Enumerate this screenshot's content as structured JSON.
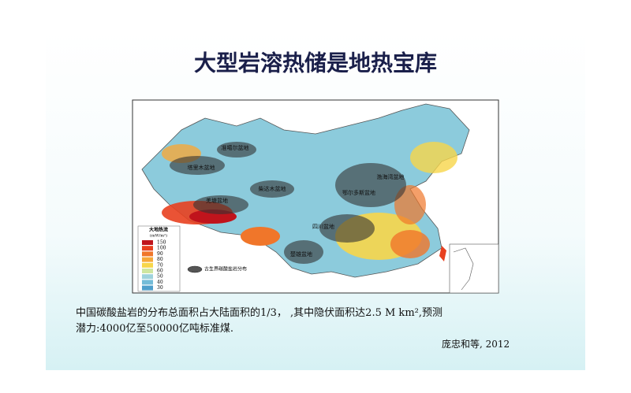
{
  "title": "大型岩溶热储是地热宝库",
  "map": {
    "basins": [
      "准噶尔盆地",
      "塔里木盆地",
      "柴达木盆地",
      "羌塘盆地",
      "鄂尔多斯盆地",
      "渤海湾盆地",
      "四川盆地",
      "楚雄盆地"
    ],
    "legend": {
      "title": "大地热流",
      "unit": "(mW/m²)",
      "items": [
        {
          "value": 150,
          "color": "#c0141c"
        },
        {
          "value": 100,
          "color": "#e8401f"
        },
        {
          "value": 90,
          "color": "#f0762a"
        },
        {
          "value": 80,
          "color": "#f6a83a"
        },
        {
          "value": 70,
          "color": "#f7d64a"
        },
        {
          "value": 60,
          "color": "#cfe6a0"
        },
        {
          "value": 50,
          "color": "#9fd3dc"
        },
        {
          "value": 40,
          "color": "#74bcd8"
        },
        {
          "value": 30,
          "color": "#4f9fcb"
        }
      ]
    },
    "carbonate_label": "古生界碳酸盐岩分布"
  },
  "text": {
    "line1": "中国碳酸盐岩的分布总面积占大陆面积的1/3， ,其中隐伏面积达2.5 M km²,预测",
    "line2": "潜力:4000亿至50000亿吨标准煤.",
    "citation": "庞忠和等, 2012"
  }
}
